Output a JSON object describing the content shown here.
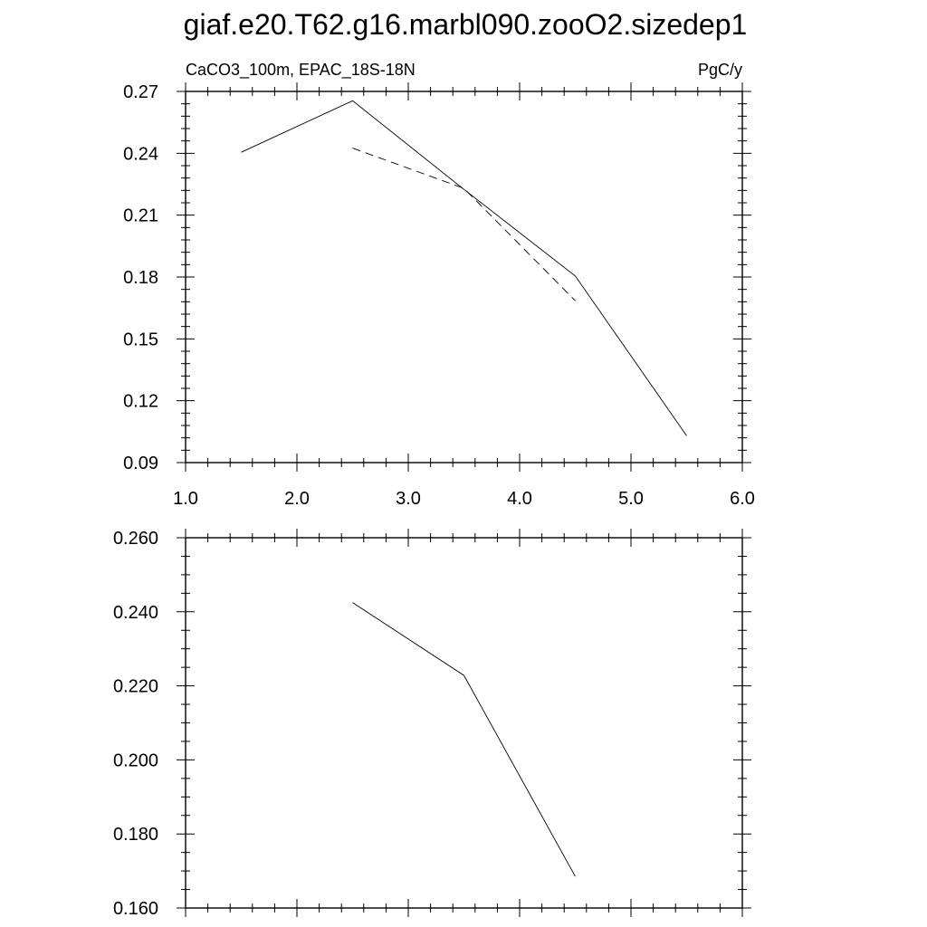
{
  "figure": {
    "title": "giaf.e20.T62.g16.marbl090.zooO2.sizedep1"
  },
  "chart_data": [
    {
      "type": "line",
      "left_label": "CaCO3_100m, EPAC_18S-18N",
      "right_label": "PgC/y",
      "xlim": [
        1.0,
        6.0
      ],
      "ylim": [
        0.09,
        0.27
      ],
      "x_ticks": [
        1.0,
        2.0,
        3.0,
        4.0,
        5.0,
        6.0
      ],
      "x_tick_labels": [
        "1.0",
        "2.0",
        "3.0",
        "4.0",
        "5.0",
        "6.0"
      ],
      "y_ticks": [
        0.09,
        0.12,
        0.15,
        0.18,
        0.21,
        0.24,
        0.27
      ],
      "y_tick_labels": [
        "0.09",
        "0.12",
        "0.15",
        "0.18",
        "0.21",
        "0.24",
        "0.27"
      ],
      "grid": false,
      "series": [
        {
          "style": "solid",
          "x": [
            1.5,
            2.5,
            3.5,
            4.5,
            5.5
          ],
          "y": [
            0.2405,
            0.2655,
            0.2225,
            0.1805,
            0.103
          ]
        },
        {
          "style": "dashed",
          "x": [
            2.5,
            3.5,
            4.5
          ],
          "y": [
            0.2425,
            0.223,
            0.1685
          ]
        }
      ]
    },
    {
      "type": "line",
      "xlim": [
        1.0,
        6.0
      ],
      "ylim": [
        0.16,
        0.26
      ],
      "x_ticks": [
        1.0,
        2.0,
        3.0,
        4.0,
        5.0,
        6.0
      ],
      "y_ticks": [
        0.16,
        0.18,
        0.2,
        0.22,
        0.24,
        0.26
      ],
      "y_tick_labels": [
        "0.160",
        "0.180",
        "0.200",
        "0.220",
        "0.240",
        "0.260"
      ],
      "grid": false,
      "series": [
        {
          "style": "solid",
          "x": [
            2.5,
            3.5,
            4.5
          ],
          "y": [
            0.2425,
            0.2228,
            0.1685
          ]
        }
      ]
    }
  ]
}
